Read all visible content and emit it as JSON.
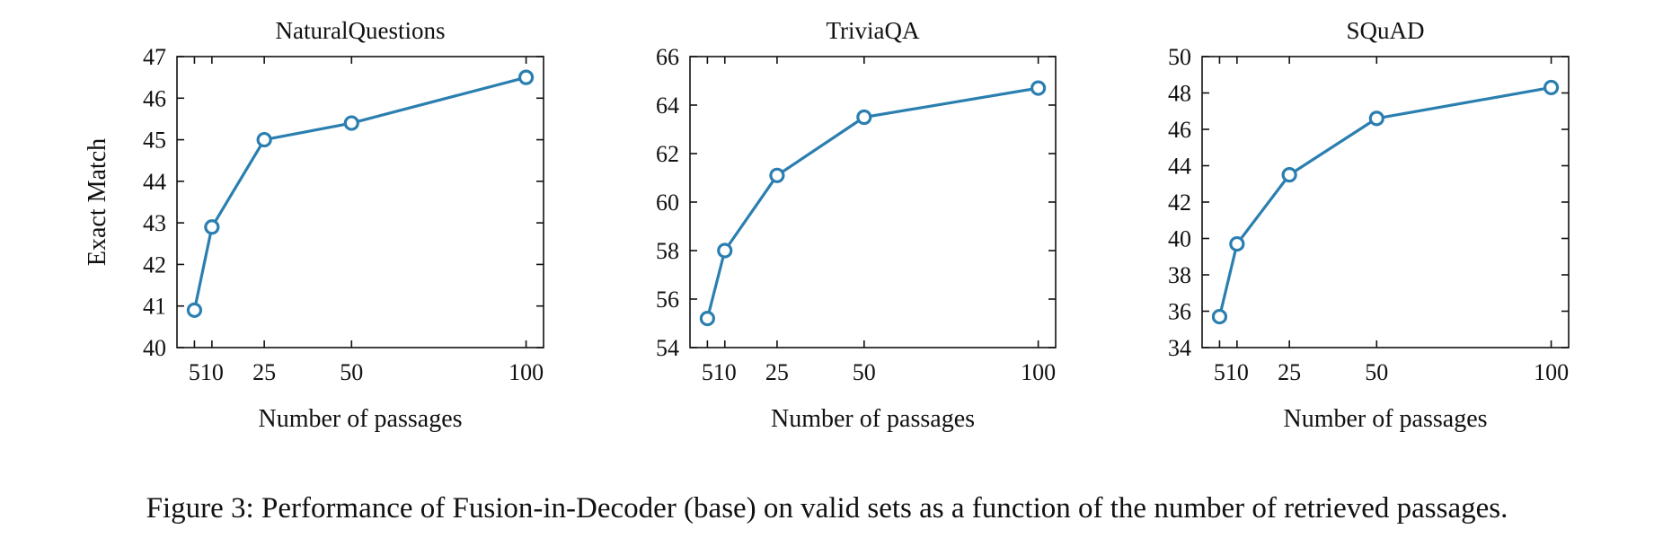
{
  "caption": "Figure 3: Performance of Fusion-in-Decoder (base) on valid sets as a function of the number of retrieved passages.",
  "series_color": "#2a7fb0",
  "chart_data": [
    {
      "type": "line",
      "title": "NaturalQuestions",
      "xlabel": "Number of passages",
      "ylabel": "Exact Match",
      "x": [
        5,
        10,
        25,
        50,
        100
      ],
      "xticks": [
        5,
        10,
        25,
        50,
        100
      ],
      "xlim": [
        0,
        105
      ],
      "ylim": [
        40,
        47
      ],
      "yticks": [
        40,
        41,
        42,
        43,
        44,
        45,
        46,
        47
      ],
      "series": [
        {
          "values": [
            40.9,
            42.9,
            45.0,
            45.4,
            46.5
          ]
        }
      ],
      "grid": false
    },
    {
      "type": "line",
      "title": "TriviaQA",
      "xlabel": "Number of passages",
      "ylabel": "",
      "x": [
        5,
        10,
        25,
        50,
        100
      ],
      "xticks": [
        5,
        10,
        25,
        50,
        100
      ],
      "xlim": [
        0,
        105
      ],
      "ylim": [
        54,
        66
      ],
      "yticks": [
        54,
        56,
        58,
        60,
        62,
        64,
        66
      ],
      "series": [
        {
          "values": [
            55.2,
            58.0,
            61.1,
            63.5,
            64.7
          ]
        }
      ],
      "grid": false
    },
    {
      "type": "line",
      "title": "SQuAD",
      "xlabel": "Number of passages",
      "ylabel": "",
      "x": [
        5,
        10,
        25,
        50,
        100
      ],
      "xticks": [
        5,
        10,
        25,
        50,
        100
      ],
      "xlim": [
        0,
        105
      ],
      "ylim": [
        34,
        50
      ],
      "yticks": [
        34,
        36,
        38,
        40,
        42,
        44,
        46,
        48,
        50
      ],
      "series": [
        {
          "values": [
            35.7,
            39.7,
            43.5,
            46.6,
            48.3
          ]
        }
      ],
      "grid": false
    }
  ]
}
